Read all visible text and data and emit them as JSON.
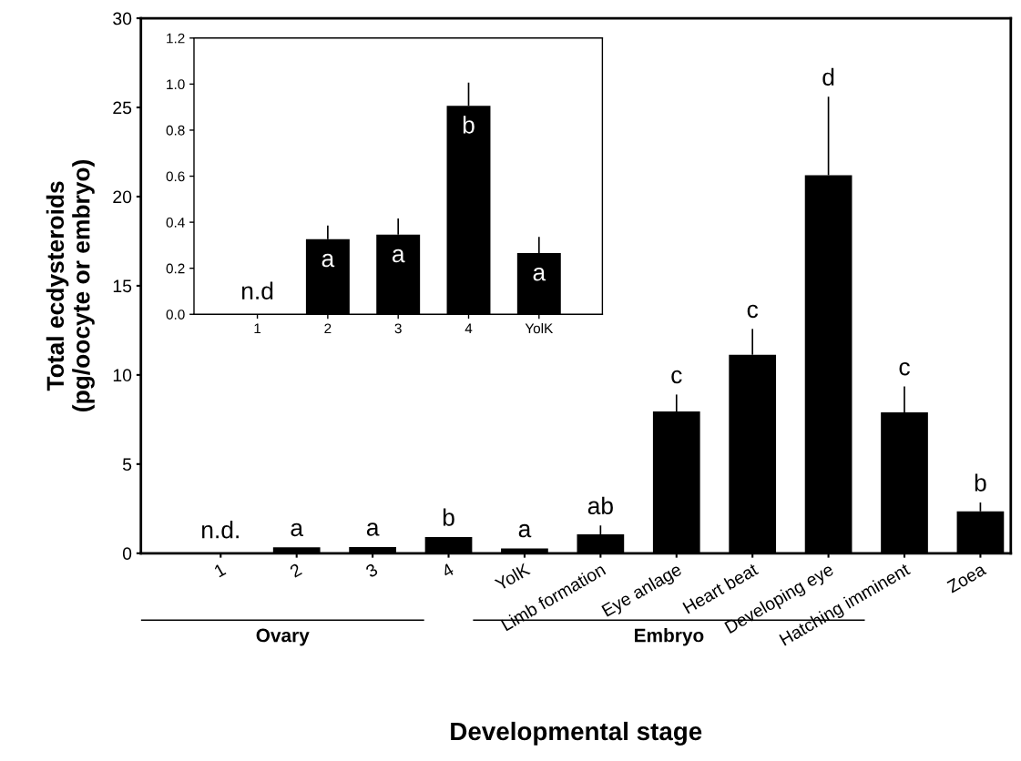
{
  "chart_data": [
    {
      "type": "bar",
      "xlabel": "Developmental stage",
      "ylabel": "Total ecdysteroids\n(pg/oocyte or embryo)",
      "categories": [
        "1",
        "2",
        "3",
        "4",
        "YolK",
        "Limb formation",
        "Eye anlage",
        "Heart beat",
        "Developing eye",
        "Hatching imminent",
        "Zoea"
      ],
      "series": [
        {
          "color": "#000000",
          "values": [
            0,
            0.33,
            0.35,
            0.91,
            0.27,
            1.06,
            7.95,
            11.13,
            21.2,
            7.9,
            2.35
          ],
          "errors": [
            null,
            null,
            null,
            null,
            null,
            0.5,
            0.95,
            1.45,
            4.4,
            1.45,
            0.5
          ]
        }
      ],
      "ylim": [
        0,
        30
      ],
      "yticks": [
        0,
        5,
        10,
        15,
        20,
        25,
        30
      ],
      "annotations": [
        {
          "text": "n.d.",
          "x": "1",
          "y": 0
        },
        {
          "text": "a",
          "x": "2",
          "y": 0.33
        },
        {
          "text": "a",
          "x": "3",
          "y": 0.35
        },
        {
          "text": "b",
          "x": "4",
          "y": 0.91
        },
        {
          "text": "a",
          "x": "YolK",
          "y": 0.27
        },
        {
          "text": "ab",
          "x": "Limb formation",
          "y": 1.56
        },
        {
          "text": "c",
          "x": "Eye anlage",
          "y": 8.9
        },
        {
          "text": "c",
          "x": "Heart beat",
          "y": 12.58
        },
        {
          "text": "d",
          "x": "Developing eye",
          "y": 25.6
        },
        {
          "text": "c",
          "x": "Hatching imminent",
          "y": 9.35
        },
        {
          "text": "b",
          "x": "Zoea",
          "y": 2.85
        },
        "Ovary",
        "Embryo"
      ]
    },
    {
      "type": "bar",
      "categories": [
        "1",
        "2",
        "3",
        "4",
        "YolK"
      ],
      "series": [
        {
          "color": "#000000",
          "values": [
            0,
            0.326,
            0.346,
            0.906,
            0.266
          ],
          "errors": [
            null,
            0.06,
            0.07,
            0.1,
            0.07
          ]
        }
      ],
      "ylim": [
        0,
        1.2
      ],
      "yticks": [
        {
          "value": 0,
          "label": "0.0"
        },
        {
          "value": 0.2,
          "label": "0.2"
        },
        {
          "value": 0.4,
          "label": "0.4"
        },
        {
          "value": 0.6,
          "label": "0.6"
        },
        {
          "value": 0.8,
          "label": "0.8"
        },
        {
          "value": 1.0,
          "label": "1.0"
        },
        {
          "value": 1.2,
          "label": "1.2"
        }
      ],
      "annotations": [
        {
          "text": "n.d",
          "x": "1",
          "y": 0
        },
        {
          "text": "a",
          "x": "2",
          "y": 0.326
        },
        {
          "text": "a",
          "x": "3",
          "y": 0.346
        },
        {
          "text": "b",
          "x": "4",
          "y": 0.906
        },
        {
          "text": "a",
          "x": "YolK",
          "y": 0.266
        }
      ]
    }
  ]
}
